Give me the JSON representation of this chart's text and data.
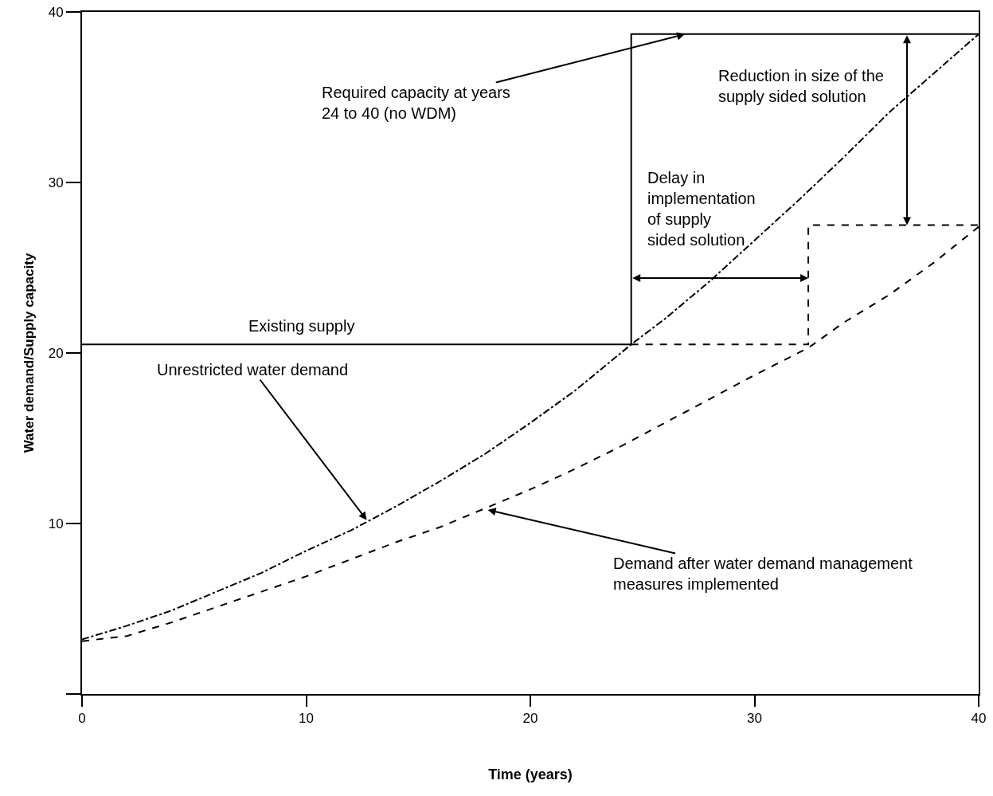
{
  "chart_data": {
    "type": "line",
    "xlabel": "Time (years)",
    "ylabel": "Water demand/Supply capacity",
    "xlim": [
      0,
      40
    ],
    "xticks": [
      0,
      10,
      20,
      30,
      40
    ],
    "ylim": [
      0,
      40
    ],
    "yticks": [
      {
        "value": 0,
        "label": null
      },
      10,
      20,
      30,
      40
    ],
    "grid": false,
    "marker": "none",
    "series": [
      {
        "color": "#000000",
        "line_style": "solid",
        "x": [
          0,
          24.5,
          24.5,
          40
        ],
        "values": [
          20.5,
          20.5,
          38.7,
          38.7
        ]
      },
      {
        "color": "#000000",
        "line_style": "dashdot",
        "x": [
          0,
          2,
          4,
          6,
          8,
          10,
          12,
          14,
          16,
          18,
          20,
          22,
          24.5,
          26,
          28,
          30,
          32,
          34,
          36,
          38,
          40
        ],
        "values": [
          3.2,
          4.0,
          4.9,
          6.0,
          7.1,
          8.4,
          9.6,
          11.0,
          12.5,
          14.1,
          15.9,
          17.8,
          20.5,
          22.0,
          24.2,
          26.6,
          29.0,
          31.5,
          34.1,
          36.4,
          38.7
        ]
      },
      {
        "color": "#000000",
        "line_style": "dashed",
        "x": [
          0,
          2,
          4,
          6,
          8,
          10,
          12,
          14,
          16,
          18,
          20,
          22,
          24,
          26,
          28,
          30,
          32.4,
          34,
          36,
          38,
          40
        ],
        "values": [
          3.1,
          3.4,
          4.2,
          5.1,
          6.0,
          6.9,
          7.9,
          8.9,
          9.8,
          10.9,
          12.0,
          13.2,
          14.5,
          15.9,
          17.3,
          18.7,
          20.3,
          21.8,
          23.4,
          25.3,
          27.4
        ]
      },
      {
        "color": "#000000",
        "line_style": "dashed",
        "x": [
          24.5,
          32.4,
          32.4,
          40
        ],
        "values": [
          20.5,
          20.5,
          27.5,
          27.5
        ]
      }
    ],
    "annotations": [
      "Existing supply",
      {
        "text": "Required capacity at years\n24 to 40 (no WDM)",
        "x": 26.9,
        "y": 38.7
      },
      "Reduction in size of the\nsupply sided solution",
      "Delay in\nimplementation\nof supply\nsided solution",
      {
        "text": "Unrestricted water demand",
        "x": 12.7,
        "y": 10.2
      },
      {
        "text": "Demand after water demand management\nmeasures implemented",
        "x": 18.1,
        "y": 10.8
      }
    ]
  }
}
